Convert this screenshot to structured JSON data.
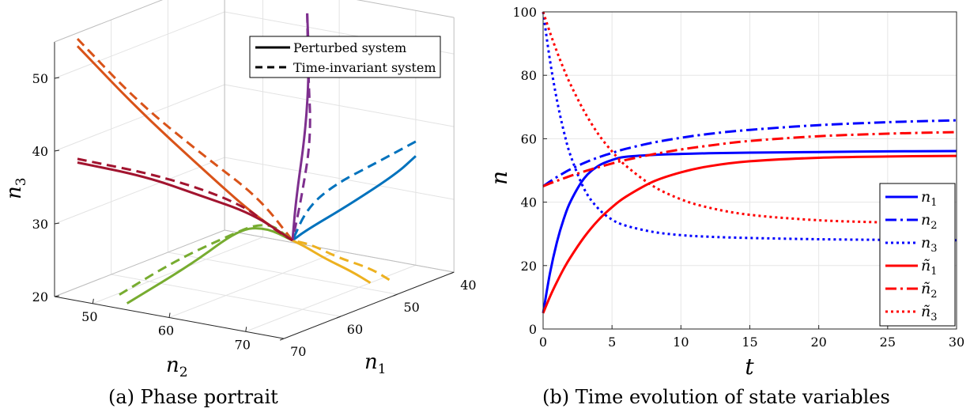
{
  "chart_data": [
    {
      "type": "line",
      "subtype": "3d-phase-portrait",
      "caption": "(a) Phase portrait",
      "xlabel": "n_1",
      "ylabel": "n_2",
      "zlabel": "n_3",
      "xlim": [
        40,
        70
      ],
      "ylim": [
        45,
        75
      ],
      "zlim": [
        20,
        55
      ],
      "xticks": [
        "40",
        "50",
        "60",
        "70"
      ],
      "yticks": [
        "50",
        "60",
        "70"
      ],
      "zticks": [
        "20",
        "30",
        "40",
        "50"
      ],
      "grid": true,
      "legend": {
        "placement": "top-right",
        "entries": [
          {
            "label": "Perturbed system",
            "style": "solid"
          },
          {
            "label": "Time-invariant system",
            "style": "dashed"
          }
        ]
      },
      "equilibrium": {
        "n1": 55,
        "n2": 65,
        "n3": 27
      },
      "series": [
        {
          "color": "#0072BD",
          "perturbed": [
            [
              40,
              70,
              35
            ],
            [
              42,
              69,
              33
            ],
            [
              48,
              67,
              30
            ],
            [
              53,
              65.5,
              28
            ],
            [
              55,
              65,
              27
            ]
          ],
          "invariant": [
            [
              40,
              70,
              37
            ],
            [
              44,
              68,
              35
            ],
            [
              49,
              66,
              33
            ],
            [
              53,
              65.5,
              31
            ],
            [
              55,
              65,
              27
            ]
          ]
        },
        {
          "color": "#D95319",
          "perturbed": [
            [
              70,
              48,
              55
            ],
            [
              66,
              53,
              46
            ],
            [
              61,
              58,
              37
            ],
            [
              58,
              62,
              31
            ],
            [
              55,
              65,
              27
            ]
          ],
          "invariant": [
            [
              70,
              48,
              56
            ],
            [
              66,
              53,
              47
            ],
            [
              61,
              58,
              39
            ],
            [
              57,
              62,
              33
            ],
            [
              55,
              65,
              27
            ]
          ]
        },
        {
          "color": "#EDB120",
          "perturbed": [
            [
              48,
              70,
              20
            ],
            [
              50,
              69,
              22
            ],
            [
              52,
              67,
              24
            ],
            [
              54,
              66,
              26
            ],
            [
              55,
              65,
              27
            ]
          ],
          "invariant": [
            [
              46,
              71,
              20
            ],
            [
              48,
              70,
              22
            ],
            [
              51,
              68,
              24
            ],
            [
              53,
              66,
              26
            ],
            [
              55,
              65,
              27
            ]
          ]
        },
        {
          "color": "#7E2F8E",
          "perturbed": [
            [
              47,
              61,
              55
            ],
            [
              48,
              62,
              48
            ],
            [
              50,
              63,
              40
            ],
            [
              53,
              64,
              32
            ],
            [
              55,
              65,
              27
            ]
          ],
          "invariant": [
            [
              47,
              61,
              55
            ],
            [
              47.5,
              61.5,
              47
            ],
            [
              49,
              63,
              39
            ],
            [
              52,
              64,
              32
            ],
            [
              55,
              65,
              27
            ]
          ]
        },
        {
          "color": "#77AC30",
          "perturbed": [
            [
              68,
              53,
              20
            ],
            [
              63,
              58,
              25
            ],
            [
              59,
              61,
              29
            ],
            [
              57,
              63,
              29
            ],
            [
              55,
              65,
              27
            ]
          ],
          "invariant": [
            [
              68,
              52,
              21
            ],
            [
              64,
              56,
              25
            ],
            [
              61,
              60,
              28
            ],
            [
              57,
              63,
              30
            ],
            [
              55,
              65,
              27
            ]
          ]
        },
        {
          "color": "#A2142F",
          "perturbed": [
            [
              70,
              48,
              39
            ],
            [
              66,
              54,
              37
            ],
            [
              62,
              58,
              34
            ],
            [
              58,
              62,
              31
            ],
            [
              55,
              65,
              27
            ]
          ],
          "invariant": [
            [
              70,
              48,
              39.5
            ],
            [
              65,
              56,
              37
            ],
            [
              60,
              62,
              33
            ],
            [
              57,
              64,
              29
            ],
            [
              55,
              65,
              27
            ]
          ]
        }
      ]
    },
    {
      "type": "line",
      "caption": "(b) Time evolution of state variables",
      "xlabel": "t",
      "ylabel": "n",
      "xlim": [
        0,
        30
      ],
      "ylim": [
        0,
        100
      ],
      "xticks": [
        0,
        5,
        10,
        15,
        20,
        25,
        30
      ],
      "yticks": [
        0,
        20,
        40,
        60,
        80,
        100
      ],
      "grid": true,
      "legend_placement": "right",
      "x": [
        0,
        0.5,
        1,
        1.5,
        2,
        3,
        4,
        5,
        6,
        8,
        10,
        12,
        15,
        20,
        25,
        30
      ],
      "series": [
        {
          "name": "n_1",
          "color": "#0000FF",
          "dash": "solid",
          "values": [
            5,
            17.6,
            27.3,
            34.7,
            40.3,
            47.6,
            51.4,
            53.3,
            54.3,
            54.9,
            55.2,
            55.4,
            55.6,
            55.8,
            56.0,
            56.1
          ]
        },
        {
          "name": "n_2",
          "color": "#0000FF",
          "dash": "dashdot",
          "values": [
            45,
            46.5,
            47.9,
            49.2,
            50.4,
            52.4,
            54.1,
            55.5,
            56.8,
            58.8,
            60.3,
            61.5,
            62.8,
            64.3,
            65.2,
            65.8
          ]
        },
        {
          "name": "n_3",
          "color": "#0000FF",
          "dash": "dotted",
          "values": [
            100,
            84.7,
            72.3,
            62.4,
            54.6,
            44.0,
            38.0,
            34.5,
            32.6,
            30.6,
            29.6,
            29.1,
            28.7,
            28.3,
            28.1,
            28.0
          ]
        },
        {
          "name": "ñ_1",
          "color": "#FF0000",
          "dash": "solid",
          "values": [
            5,
            10.2,
            14.8,
            19.0,
            22.7,
            29.1,
            34.3,
            38.4,
            41.7,
            46.5,
            49.4,
            51.3,
            52.9,
            54.0,
            54.4,
            54.6
          ]
        },
        {
          "name": "ñ_2",
          "color": "#FF0000",
          "dash": "dashdot",
          "values": [
            45,
            45.9,
            46.7,
            47.5,
            48.3,
            49.7,
            51.0,
            52.2,
            53.3,
            55.1,
            56.6,
            57.8,
            59.3,
            60.8,
            61.6,
            62.1
          ]
        },
        {
          "name": "ñ_3",
          "color": "#FF0000",
          "dash": "dotted",
          "values": [
            100,
            93.5,
            87.5,
            82.0,
            77.0,
            68.5,
            61.5,
            56.0,
            51.5,
            45.0,
            40.9,
            38.3,
            36.0,
            34.3,
            33.6,
            33.2
          ]
        }
      ]
    }
  ]
}
